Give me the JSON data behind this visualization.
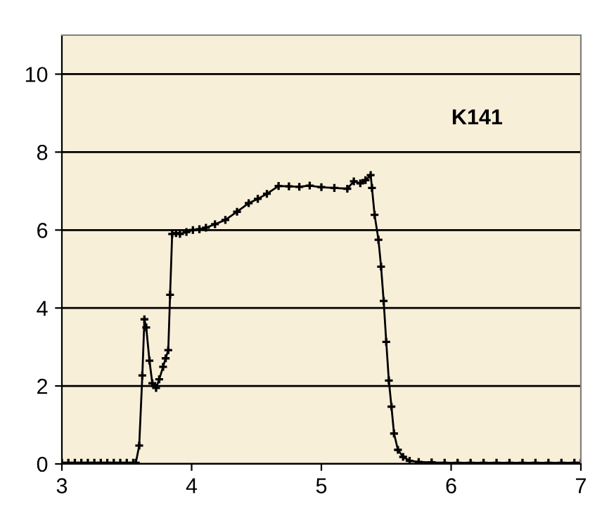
{
  "chart_data": {
    "type": "line",
    "x": [
      3.0,
      3.05,
      3.1,
      3.15,
      3.2,
      3.25,
      3.3,
      3.35,
      3.4,
      3.45,
      3.5,
      3.55,
      3.57,
      3.596,
      3.62,
      3.636,
      3.65,
      3.675,
      3.697,
      3.726,
      3.75,
      3.78,
      3.8,
      3.82,
      3.834,
      3.85,
      3.88,
      3.91,
      3.96,
      4.01,
      4.06,
      4.11,
      4.18,
      4.26,
      4.35,
      4.44,
      4.51,
      4.58,
      4.67,
      4.75,
      4.83,
      4.91,
      5.0,
      5.1,
      5.2,
      5.25,
      5.3,
      5.34,
      5.38,
      5.39,
      5.41,
      5.44,
      5.46,
      5.48,
      5.5,
      5.52,
      5.54,
      5.56,
      5.59,
      5.63,
      5.68,
      5.75,
      5.85,
      5.95,
      6.05,
      6.15,
      6.25,
      6.35,
      6.45,
      6.55,
      6.65,
      6.75,
      6.85,
      6.95,
      7.0
    ],
    "series": [
      {
        "color": "#000000",
        "values": [
          0.03,
          0.03,
          0.03,
          0.03,
          0.03,
          0.03,
          0.03,
          0.03,
          0.03,
          0.03,
          0.03,
          0.03,
          0.03,
          0.47,
          2.27,
          3.71,
          3.5,
          2.65,
          2.07,
          1.95,
          2.17,
          2.49,
          2.71,
          2.92,
          4.34,
          5.9,
          5.92,
          5.9,
          5.95,
          6.0,
          6.02,
          6.06,
          6.15,
          6.26,
          6.47,
          6.69,
          6.8,
          6.93,
          7.13,
          7.12,
          7.11,
          7.14,
          7.1,
          7.08,
          7.06,
          7.25,
          7.2,
          7.28,
          7.41,
          7.08,
          6.39,
          5.75,
          5.06,
          4.18,
          3.13,
          2.14,
          1.47,
          0.78,
          0.36,
          0.18,
          0.08,
          0.05,
          0.04,
          0.03,
          0.03,
          0.03,
          0.03,
          0.03,
          0.03,
          0.03,
          0.03,
          0.03,
          0.03,
          0.03,
          0.03
        ]
      }
    ],
    "xlim": [
      3,
      7
    ],
    "xticks": [
      3,
      4,
      5,
      6,
      7
    ],
    "ylim": [
      0,
      11
    ],
    "yticks": [
      0,
      2,
      4,
      6,
      8,
      10
    ],
    "grid": "y",
    "legend": false,
    "marker": "cross",
    "line_style": "solid",
    "annotations": [
      "K141"
    ]
  }
}
